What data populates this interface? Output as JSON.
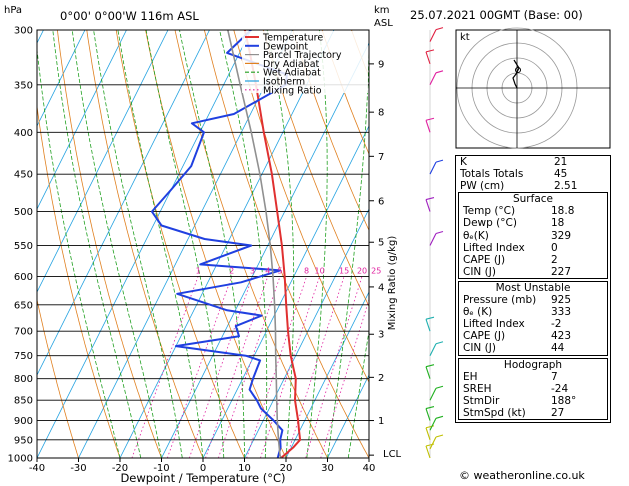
{
  "header": {
    "location": "0°00' 0°00'W 116m ASL",
    "hpa_label": "hPa",
    "km_label": "km",
    "asl_label": "ASL",
    "datetime": "25.07.2021 00GMT (Base: 00)"
  },
  "footer": {
    "credit": "© weatheronline.co.uk"
  },
  "colors": {
    "temperature": "#e03030",
    "dewpoint": "#2040e0",
    "parcel": "#909090",
    "dry_adiabat": "#e08020",
    "wet_adiabat": "#20a020",
    "isotherm": "#20a0e0",
    "mixing_ratio": "#e020a0"
  },
  "chart_data": {
    "type": "line",
    "chart_kind": "skew-T log-p sounding",
    "xlabel": "Dewpoint / Temperature (°C)",
    "ylabel_right": "Mixing Ratio (g/kg)",
    "x_ticks": [
      "-40",
      "-30",
      "-20",
      "-10",
      "0",
      "10",
      "20",
      "30",
      "40"
    ],
    "xlim": [
      -40,
      40
    ],
    "pressure_ticks": [
      "300",
      "350",
      "400",
      "450",
      "500",
      "550",
      "600",
      "650",
      "700",
      "750",
      "800",
      "850",
      "900",
      "950",
      "1000"
    ],
    "plim": [
      300,
      1000
    ],
    "skew_deg_per_decade_log": 84,
    "km_ticks": [
      {
        "label": "9",
        "p": 330
      },
      {
        "label": "8",
        "p": 378
      },
      {
        "label": "7",
        "p": 428
      },
      {
        "label": "6",
        "p": 485
      },
      {
        "label": "5",
        "p": 545
      },
      {
        "label": "4",
        "p": 618
      },
      {
        "label": "3",
        "p": 706
      },
      {
        "label": "2",
        "p": 797
      },
      {
        "label": "1",
        "p": 900
      }
    ],
    "lcl_label": "LCL",
    "lcl_p": 992,
    "mixing_ratio_labels": [
      "1",
      "2",
      "3",
      "4",
      "5",
      "8",
      "10",
      "15",
      "20",
      "25"
    ],
    "mixing_ratio_values": [
      1,
      2,
      3,
      4,
      5,
      8,
      10,
      15,
      20,
      25
    ],
    "legend": [
      "Temperature",
      "Dewpoint",
      "Parcel Trajectory",
      "Dry Adiabat",
      "Wet Adiabat",
      "Isotherm",
      "Mixing Ratio"
    ],
    "legend_position": "top-right",
    "series": [
      {
        "name": "Temperature",
        "points": [
          [
            1000,
            18.8
          ],
          [
            970,
            20.5
          ],
          [
            950,
            21.2
          ],
          [
            925,
            19.8
          ],
          [
            900,
            18.4
          ],
          [
            850,
            15.2
          ],
          [
            800,
            12.8
          ],
          [
            750,
            8.8
          ],
          [
            700,
            5.2
          ],
          [
            650,
            1.6
          ],
          [
            600,
            -2.2
          ],
          [
            550,
            -6.6
          ],
          [
            500,
            -11.8
          ],
          [
            450,
            -17.6
          ],
          [
            400,
            -24.6
          ],
          [
            350,
            -32.2
          ],
          [
            320,
            -37.5
          ],
          [
            300,
            -41.5
          ]
        ]
      },
      {
        "name": "Dewpoint",
        "points": [
          [
            1000,
            18
          ],
          [
            970,
            17.4
          ],
          [
            950,
            16.4
          ],
          [
            925,
            15.8
          ],
          [
            900,
            12.5
          ],
          [
            870,
            8
          ],
          [
            850,
            6
          ],
          [
            825,
            3
          ],
          [
            800,
            2.5
          ],
          [
            760,
            2
          ],
          [
            750,
            -2
          ],
          [
            730,
            -20
          ],
          [
            710,
            -6
          ],
          [
            690,
            -8
          ],
          [
            670,
            -3
          ],
          [
            660,
            -12
          ],
          [
            630,
            -26
          ],
          [
            610,
            -12
          ],
          [
            590,
            -4
          ],
          [
            580,
            -24
          ],
          [
            550,
            -14
          ],
          [
            540,
            -26
          ],
          [
            520,
            -38
          ],
          [
            500,
            -42
          ],
          [
            470,
            -40
          ],
          [
            440,
            -38
          ],
          [
            400,
            -39
          ],
          [
            390,
            -43
          ],
          [
            380,
            -34
          ],
          [
            350,
            -25
          ],
          [
            340,
            -26
          ],
          [
            320,
            -43
          ],
          [
            300,
            -40
          ]
        ]
      },
      {
        "name": "Parcel Trajectory",
        "points": [
          [
            1000,
            18.8
          ],
          [
            992,
            18.2
          ],
          [
            950,
            16
          ],
          [
            900,
            13.4
          ],
          [
            850,
            10.8
          ],
          [
            800,
            8.1
          ],
          [
            750,
            5.2
          ],
          [
            700,
            2.2
          ],
          [
            650,
            -1.2
          ],
          [
            600,
            -5
          ],
          [
            550,
            -9.4
          ],
          [
            500,
            -14.5
          ],
          [
            450,
            -20.5
          ],
          [
            400,
            -27.6
          ],
          [
            350,
            -36
          ],
          [
            300,
            -45.6
          ]
        ]
      }
    ]
  },
  "hodograph": {
    "label": "kt"
  },
  "indices": {
    "rows": [
      {
        "label": "K",
        "value": "21"
      },
      {
        "label": "Totals Totals",
        "value": "45"
      },
      {
        "label": "PW (cm)",
        "value": "2.51"
      }
    ],
    "surface": {
      "title": "Surface",
      "rows": [
        {
          "label": "Temp (°C)",
          "value": "18.8"
        },
        {
          "label": "Dewp (°C)",
          "value": "18"
        },
        {
          "label": "θₑ(K)",
          "value": "329"
        },
        {
          "label": "Lifted Index",
          "value": "0"
        },
        {
          "label": "CAPE (J)",
          "value": "2"
        },
        {
          "label": "CIN (J)",
          "value": "227"
        }
      ]
    },
    "most_unstable": {
      "title": "Most Unstable",
      "rows": [
        {
          "label": "Pressure (mb)",
          "value": "925"
        },
        {
          "label": "θₑ (K)",
          "value": "333"
        },
        {
          "label": "Lifted Index",
          "value": "-2"
        },
        {
          "label": "CAPE (J)",
          "value": "423"
        },
        {
          "label": "CIN (J)",
          "value": "44"
        }
      ]
    },
    "hodograph_box": {
      "title": "Hodograph",
      "rows": [
        {
          "label": "EH",
          "value": "7"
        },
        {
          "label": "SREH",
          "value": "-24"
        },
        {
          "label": "StmDir",
          "value": "188°"
        },
        {
          "label": "StmSpd (kt)",
          "value": "27"
        }
      ]
    }
  }
}
